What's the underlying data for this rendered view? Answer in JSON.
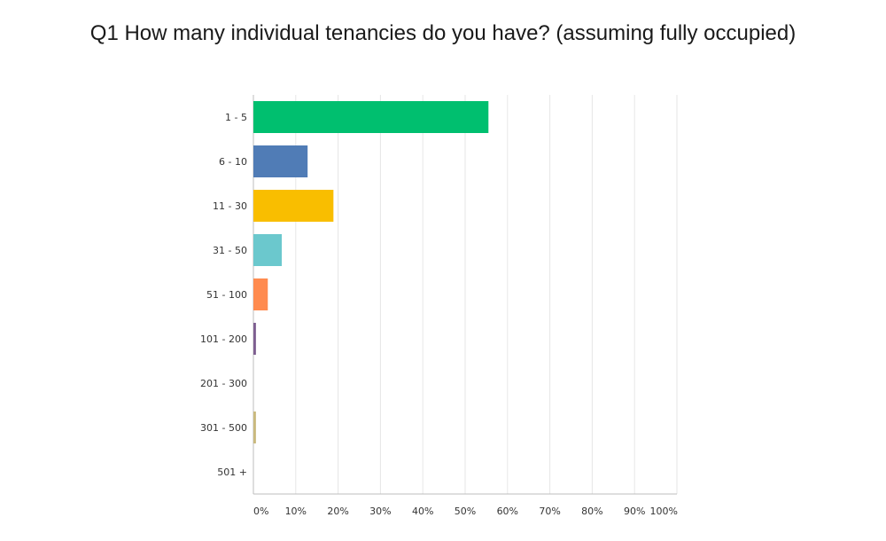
{
  "chart_data": {
    "type": "bar",
    "orientation": "horizontal",
    "title": "Q1 How many individual tenancies do you have? (assuming fully occupied)",
    "xlabel": "",
    "ylabel": "",
    "categories": [
      "1 - 5",
      "6 - 10",
      "11 - 30",
      "31 - 50",
      "51 - 100",
      "101 - 200",
      "201 - 300",
      "301 - 500",
      "501 +"
    ],
    "values": [
      55.5,
      12.8,
      18.9,
      6.7,
      3.4,
      0.6,
      0,
      0.6,
      0
    ],
    "unit": "%",
    "xlim": [
      0,
      100
    ],
    "xticks": [
      "0%",
      "10%",
      "20%",
      "30%",
      "40%",
      "50%",
      "60%",
      "70%",
      "80%",
      "90%",
      "100%"
    ],
    "grid": true,
    "colors": [
      "#00bf6f",
      "#507cb6",
      "#f9be00",
      "#6bc8cd",
      "#ff8b4f",
      "#7d5e90",
      "#d25f90",
      "#c9b97d",
      "#4f8a8b"
    ]
  }
}
